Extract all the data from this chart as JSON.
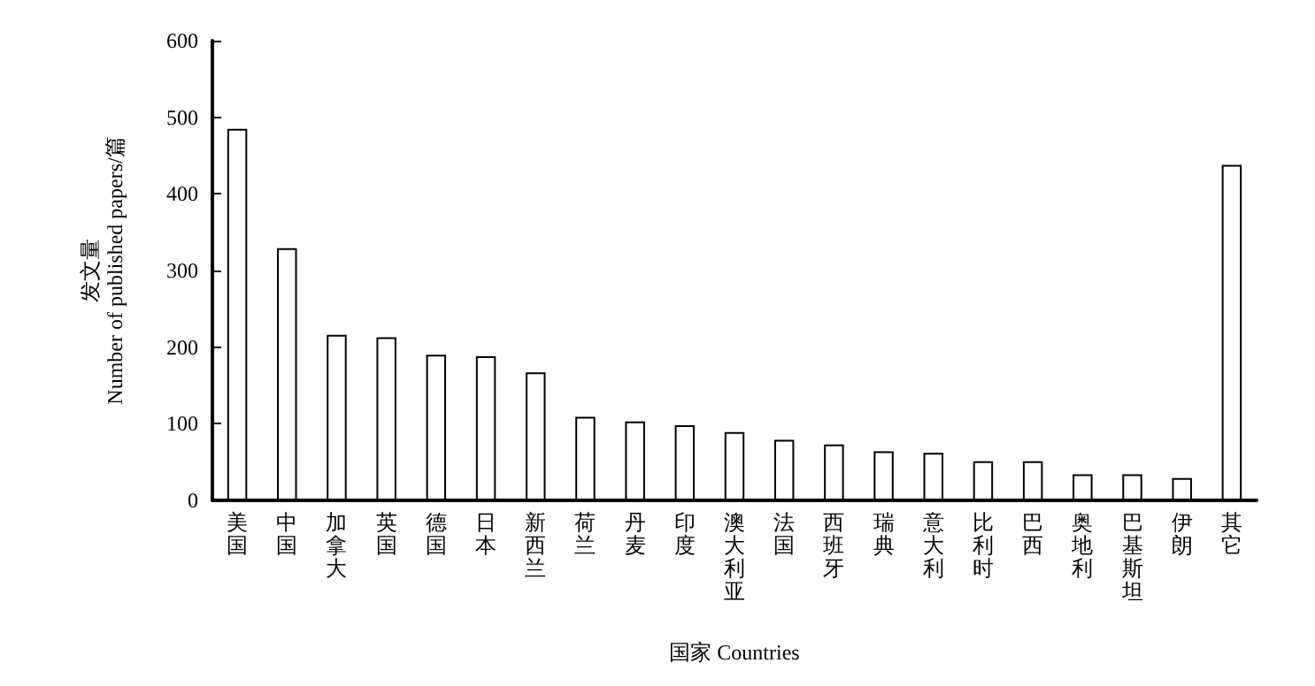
{
  "chart_data": {
    "type": "bar",
    "xlabel": "国家 Countries",
    "ylabel": "发文量\nNumber of published papers/篇",
    "categories": [
      "美国",
      "中国",
      "加拿大",
      "英国",
      "德国",
      "日本",
      "新西兰",
      "荷兰",
      "丹麦",
      "印度",
      "澳大利亚",
      "法国",
      "西班牙",
      "瑞典",
      "意大利",
      "比利时",
      "巴西",
      "奥地利",
      "巴基斯坦",
      "伊朗",
      "其它"
    ],
    "values": [
      485,
      329,
      216,
      213,
      190,
      188,
      167,
      109,
      103,
      98,
      89,
      79,
      73,
      64,
      62,
      51,
      51,
      34,
      34,
      29,
      438
    ],
    "color": "#ffffff",
    "ylim": [
      0,
      600
    ],
    "yticks": [
      0,
      100,
      200,
      300,
      400,
      500,
      600
    ],
    "grid": false
  }
}
